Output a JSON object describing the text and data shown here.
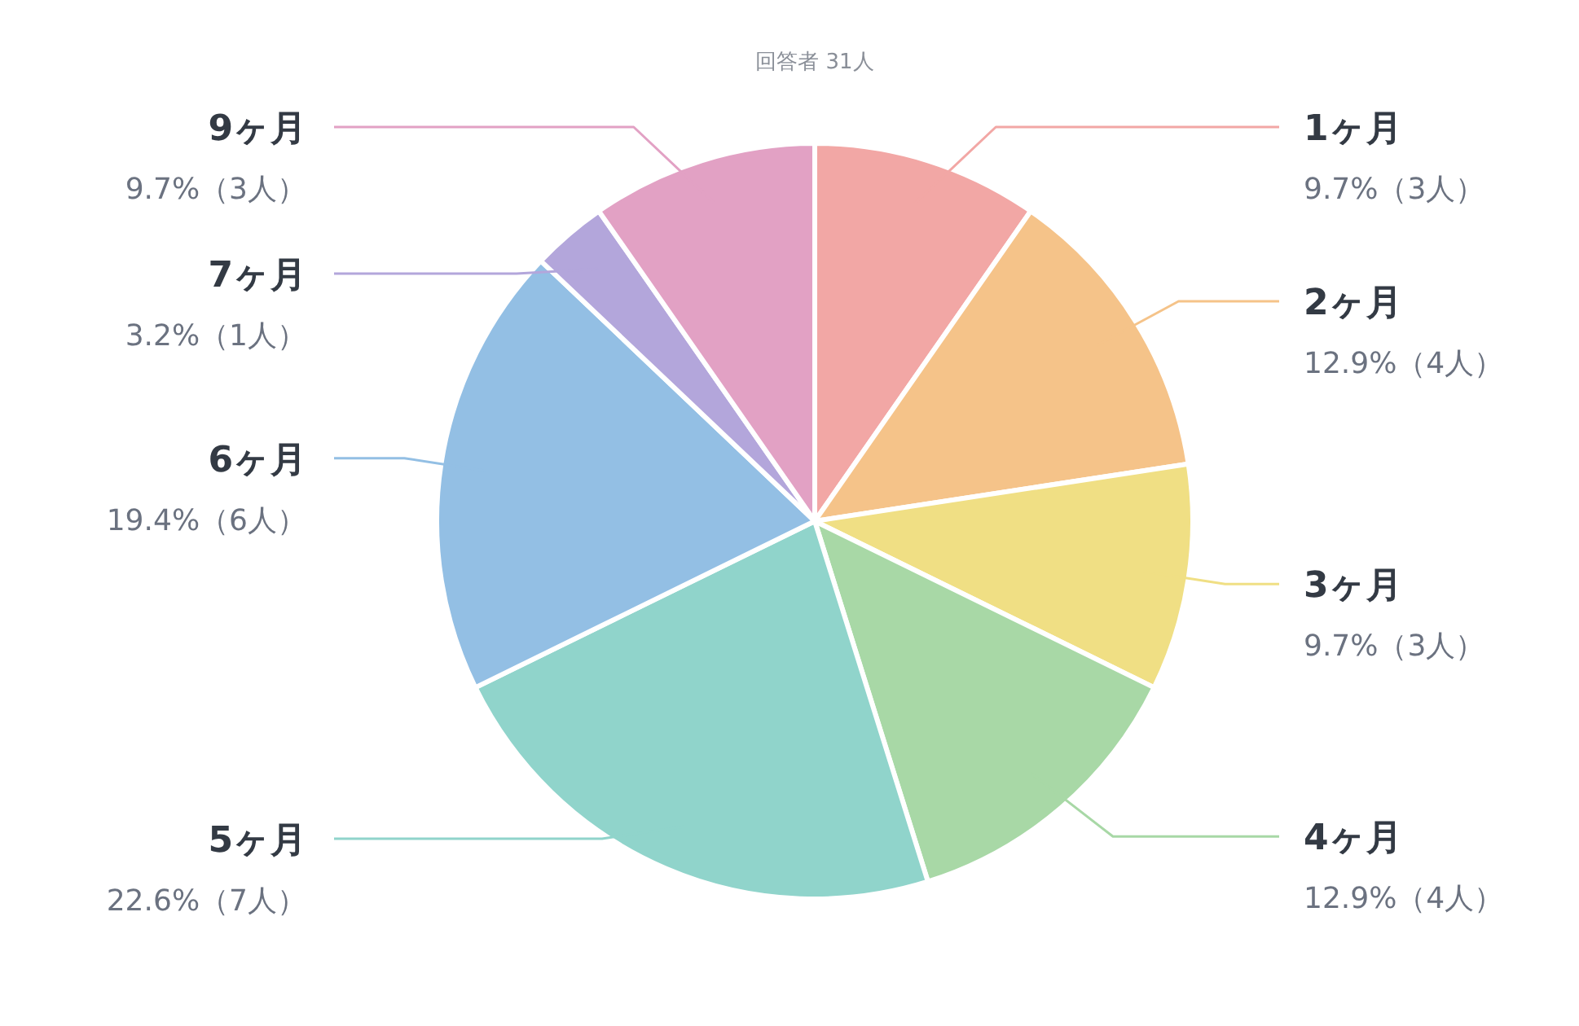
{
  "chart_data": {
    "type": "pie",
    "title": "回答者 31人",
    "categories": [
      "1ヶ月",
      "2ヶ月",
      "3ヶ月",
      "4ヶ月",
      "5ヶ月",
      "6ヶ月",
      "7ヶ月",
      "9ヶ月"
    ],
    "values": [
      3,
      4,
      3,
      4,
      7,
      6,
      1,
      3
    ],
    "value_labels": [
      "9.7%（3人）",
      "12.9%（4人）",
      "9.7%（3人）",
      "12.9%（4人）",
      "22.6%（7人）",
      "19.4%（6人）",
      "3.2%（1人）",
      "9.7%（3人）"
    ],
    "colors": [
      "#f2a7a5",
      "#f5c389",
      "#f0df84",
      "#a8d8a6",
      "#90d4cb",
      "#93bfe4",
      "#b3a6db",
      "#e2a1c4"
    ]
  }
}
